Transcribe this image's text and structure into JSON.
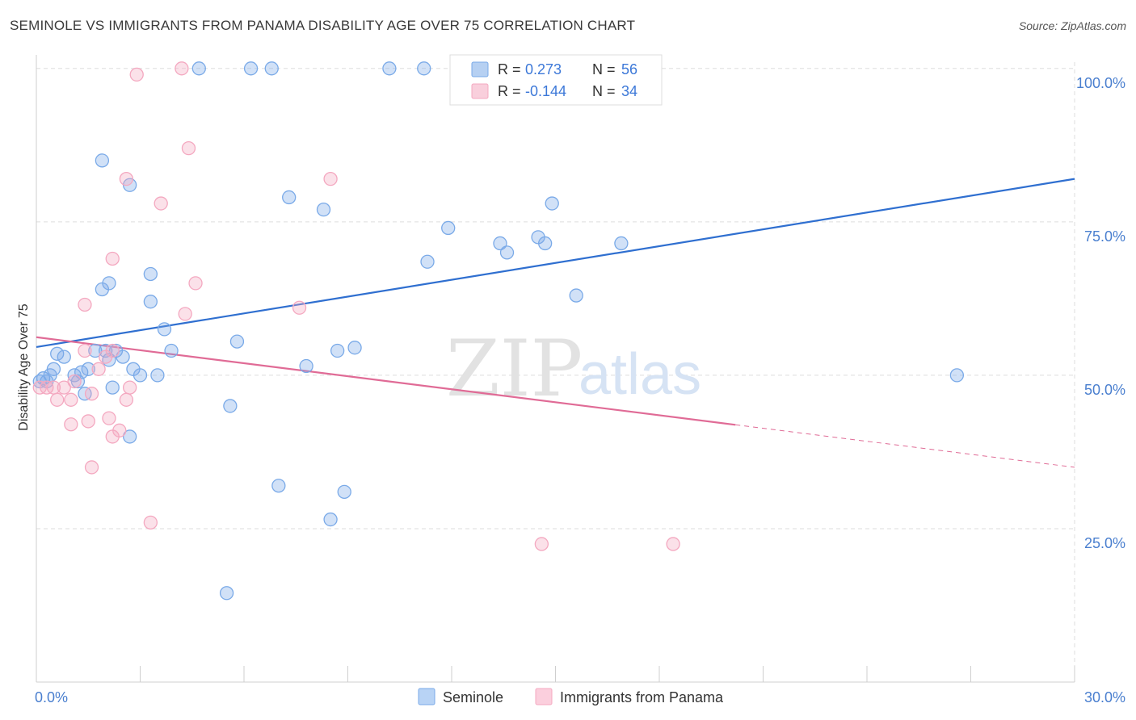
{
  "header": {
    "title": "SEMINOLE VS IMMIGRANTS FROM PANAMA DISABILITY AGE OVER 75 CORRELATION CHART",
    "source": "Source: ZipAtlas.com"
  },
  "watermark": {
    "zip": "ZIP",
    "atlas": "atlas"
  },
  "chart_data": {
    "type": "scatter",
    "xlabel": "",
    "ylabel": "Disability Age Over 75",
    "xlim": [
      0,
      30
    ],
    "ylim": [
      0,
      103
    ],
    "x_tick_labels": [
      {
        "value": 0,
        "label": "0.0%"
      },
      {
        "value": 30,
        "label": "30.0%"
      }
    ],
    "y_tick_labels": [
      {
        "value": 25,
        "label": "25.0%"
      },
      {
        "value": 50,
        "label": "50.0%"
      },
      {
        "value": 75,
        "label": "75.0%"
      },
      {
        "value": 100,
        "label": "100.0%"
      }
    ],
    "grid": true,
    "legend_position": "top-center",
    "stats": [
      {
        "series": "Seminole",
        "r_label": "R =",
        "r_value": "0.273",
        "n_label": "N =",
        "n_value": "56"
      },
      {
        "series": "Immigrants from Panama",
        "r_label": "R =",
        "r_value": "-0.144",
        "n_label": "N =",
        "n_value": "34"
      }
    ],
    "series": [
      {
        "name": "Seminole",
        "color": "#7aaae8",
        "line_color": "#2f6fd0",
        "trend": {
          "x0": 0,
          "y0": 54.6,
          "x1": 30,
          "y1": 82.0,
          "dashed_from": null
        },
        "points": [
          [
            0.1,
            49
          ],
          [
            0.2,
            49.5
          ],
          [
            0.4,
            50
          ],
          [
            0.5,
            51
          ],
          [
            0.6,
            53.5
          ],
          [
            0.8,
            53
          ],
          [
            1.1,
            50
          ],
          [
            1.2,
            49
          ],
          [
            1.3,
            50.5
          ],
          [
            1.5,
            51
          ],
          [
            1.4,
            47
          ],
          [
            1.7,
            54
          ],
          [
            2.0,
            54
          ],
          [
            2.1,
            52.5
          ],
          [
            2.2,
            48
          ],
          [
            2.3,
            54
          ],
          [
            2.5,
            53
          ],
          [
            2.7,
            40
          ],
          [
            2.8,
            51
          ],
          [
            3.0,
            50
          ],
          [
            3.3,
            62
          ],
          [
            3.5,
            50
          ],
          [
            3.7,
            57.5
          ],
          [
            3.9,
            54
          ],
          [
            1.9,
            64
          ],
          [
            2.1,
            65
          ],
          [
            2.7,
            81
          ],
          [
            3.3,
            66.5
          ],
          [
            1.9,
            85
          ],
          [
            4.7,
            100
          ],
          [
            6.2,
            100
          ],
          [
            6.8,
            100
          ],
          [
            10.2,
            100
          ],
          [
            11.2,
            100
          ],
          [
            5.6,
            45
          ],
          [
            5.8,
            55.5
          ],
          [
            7.0,
            32
          ],
          [
            7.3,
            79
          ],
          [
            7.8,
            51.5
          ],
          [
            8.3,
            77
          ],
          [
            8.5,
            26.5
          ],
          [
            8.7,
            54
          ],
          [
            8.9,
            31
          ],
          [
            9.2,
            54.5
          ],
          [
            11.3,
            68.5
          ],
          [
            11.9,
            74
          ],
          [
            13.4,
            71.5
          ],
          [
            13.6,
            70
          ],
          [
            14.5,
            72.5
          ],
          [
            14.7,
            71.5
          ],
          [
            14.9,
            78
          ],
          [
            15.6,
            63
          ],
          [
            16.9,
            71.5
          ],
          [
            5.5,
            14.5
          ],
          [
            26.6,
            50
          ],
          [
            0.3,
            49
          ]
        ]
      },
      {
        "name": "Immigrants from Panama",
        "color": "#f4a8c0",
        "line_color": "#e06b96",
        "trend": {
          "x0": 0,
          "y0": 56.2,
          "x1": 30,
          "y1": 35.0,
          "dashed_from": 20.2
        },
        "points": [
          [
            0.1,
            48
          ],
          [
            0.3,
            48
          ],
          [
            0.5,
            48
          ],
          [
            0.6,
            46
          ],
          [
            0.8,
            48
          ],
          [
            1.0,
            46
          ],
          [
            1.1,
            49
          ],
          [
            1.0,
            42
          ],
          [
            1.5,
            42.5
          ],
          [
            1.6,
            47
          ],
          [
            1.8,
            51
          ],
          [
            2.1,
            43
          ],
          [
            2.2,
            40
          ],
          [
            2.4,
            41
          ],
          [
            2.6,
            46
          ],
          [
            2.7,
            48
          ],
          [
            1.4,
            54
          ],
          [
            1.6,
            35
          ],
          [
            2.2,
            54
          ],
          [
            1.4,
            61.5
          ],
          [
            2.2,
            69
          ],
          [
            2.6,
            82
          ],
          [
            3.3,
            26
          ],
          [
            3.6,
            78
          ],
          [
            4.3,
            60
          ],
          [
            4.6,
            65
          ],
          [
            4.4,
            87
          ],
          [
            4.2,
            100
          ],
          [
            2.9,
            99
          ],
          [
            7.6,
            61
          ],
          [
            8.5,
            82
          ],
          [
            14.6,
            22.5
          ],
          [
            18.4,
            22.5
          ],
          [
            2.0,
            53
          ]
        ]
      }
    ]
  },
  "bottom_legend": [
    {
      "label": "Seminole",
      "color": "#b8d3f5",
      "border": "#7aaae8"
    },
    {
      "label": "Immigrants from Panama",
      "color": "#fbcfdd",
      "border": "#f4a8c0"
    }
  ]
}
